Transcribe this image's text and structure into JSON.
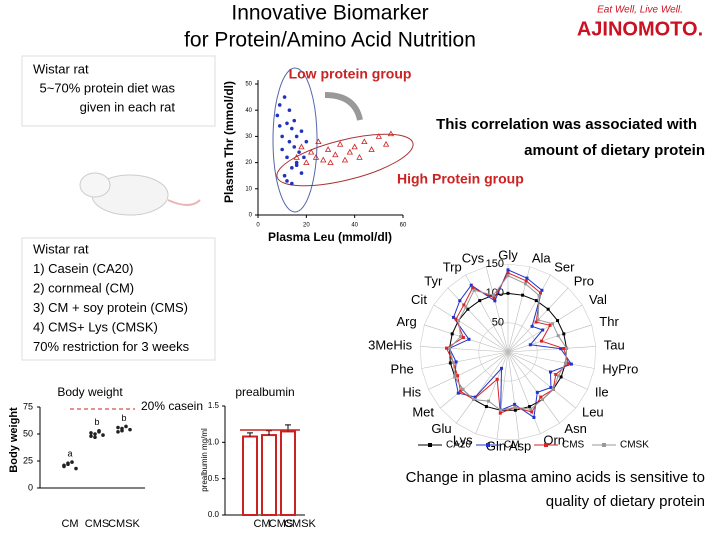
{
  "header": {
    "title_lines": [
      "Innovative Biomarker",
      "for Protein/Amino Acid Nutrition"
    ],
    "logo_tagline": "Eat Well, Live Well.",
    "logo_name": "AJINOMOTO."
  },
  "box1": {
    "lines": [
      "Wistar rat",
      "5~70% protein diet was",
      "given in each rat"
    ]
  },
  "box2": {
    "lines": [
      "Wistar rat",
      "1) Casein (CA20)",
      "2) cornmeal (CM)",
      "3) CM + soy protein (CMS)",
      "4) CMS+ Lys  (CMSK)",
      "70% restriction for 3 weeks"
    ]
  },
  "footer": {
    "lines": [
      "Change in plasma amino acids is sensitive to",
      "quality of dietary protein"
    ]
  },
  "chart_data": [
    {
      "type": "scatter",
      "xlabel": "Plasma Leu (mmol/dl)",
      "ylabel": "Plasma Thr (mmol/dl)",
      "xlim": [
        0,
        60
      ],
      "xticks": [
        0,
        20,
        40,
        60
      ],
      "ylim": [
        0,
        50
      ],
      "yticks": [
        0,
        10,
        20,
        30,
        40,
        50
      ],
      "annotations": [
        "Low protein group",
        "High Protein group",
        "This correlation was associated with",
        "amount of dietary protein"
      ],
      "series": [
        {
          "color": "#2233bb",
          "x": [
            8,
            9,
            10,
            10,
            11,
            12,
            12,
            13,
            13,
            14,
            14,
            15,
            15,
            16,
            16,
            17,
            18,
            18,
            19,
            20,
            11,
            12,
            14,
            16,
            9
          ],
          "y": [
            38,
            42,
            30,
            25,
            45,
            35,
            22,
            40,
            28,
            33,
            18,
            36,
            26,
            30,
            20,
            24,
            32,
            16,
            22,
            28,
            15,
            13,
            12,
            19,
            34
          ]
        },
        {
          "color": "#cc2222",
          "x": [
            16,
            18,
            20,
            22,
            24,
            25,
            27,
            29,
            30,
            32,
            34,
            36,
            38,
            40,
            42,
            44,
            47,
            50,
            53,
            55
          ],
          "y": [
            22,
            26,
            20,
            24,
            22,
            28,
            21,
            25,
            20,
            23,
            27,
            21,
            24,
            26,
            22,
            28,
            25,
            30,
            27,
            31
          ]
        }
      ]
    },
    {
      "type": "dot",
      "title": "Body weight",
      "ylabel": "Body weight",
      "reference_label": "20% casein",
      "reference_value": 75,
      "categories": [
        "CM",
        "CMS",
        "CMSK"
      ],
      "letters": [
        "a",
        "b",
        "b"
      ],
      "values": [
        [
          20,
          22,
          24,
          18,
          21,
          23
        ],
        [
          48,
          50,
          52,
          49,
          51,
          47,
          53
        ],
        [
          52,
          55,
          57,
          54,
          56,
          53
        ]
      ],
      "ylim": [
        0,
        75
      ],
      "yticks": [
        0,
        25,
        50,
        75
      ]
    },
    {
      "type": "bar",
      "title": "prealbumin",
      "ylabel": "prealbumin  mg/ml",
      "categories": [
        "CM",
        "CMS",
        "CMSK"
      ],
      "values": [
        1.08,
        1.1,
        1.15
      ],
      "errors": [
        0.05,
        0.06,
        0.09
      ],
      "reference_value": 1.17,
      "color": "#ffffff",
      "ylim": [
        0,
        1.5
      ],
      "yticks": [
        {
          "value": 0,
          "label": "0.0"
        },
        0.5,
        {
          "value": 1,
          "label": "1.0"
        },
        1.5
      ]
    },
    {
      "type": "radar",
      "categories": [
        "Gly",
        "Ala",
        "Ser",
        "Pro",
        "Val",
        "Thr",
        "Tau",
        "HyPro",
        "Ile",
        "Leu",
        "Asn",
        "Orn",
        "Asp",
        "Gln",
        "Lys",
        "Glu",
        "Met",
        "His",
        "Phe",
        "3MeHis",
        "Arg",
        "Cit",
        "Tyr",
        "Trp",
        "Cys"
      ],
      "rlim": [
        0,
        150
      ],
      "rticks": [
        50,
        100,
        150
      ],
      "series": [
        {
          "name": "CA20",
          "color": "#000000",
          "values": [
            100,
            100,
            100,
            100,
            100,
            100,
            100,
            100,
            100,
            100,
            100,
            100,
            100,
            100,
            100,
            100,
            100,
            100,
            100,
            100,
            100,
            100,
            100,
            100,
            100
          ]
        },
        {
          "name": "CM",
          "color": "#2233cc",
          "values": [
            140,
            130,
            120,
            60,
            70,
            40,
            90,
            110,
            80,
            95,
            85,
            120,
            90,
            100,
            30,
            95,
            110,
            100,
            90,
            100,
            70,
            110,
            120,
            130,
            90
          ]
        },
        {
          "name": "CMS",
          "color": "#dd2222",
          "values": [
            135,
            125,
            115,
            70,
            85,
            60,
            95,
            105,
            90,
            100,
            95,
            110,
            95,
            105,
            50,
            100,
            105,
            95,
            95,
            105,
            80,
            105,
            110,
            125,
            95
          ]
        },
        {
          "name": "CMSK",
          "color": "#999999",
          "values": [
            130,
            120,
            110,
            75,
            90,
            90,
            100,
            100,
            95,
            100,
            100,
            105,
            95,
            100,
            90,
            100,
            100,
            100,
            95,
            100,
            85,
            100,
            105,
            120,
            100
          ]
        }
      ]
    }
  ]
}
